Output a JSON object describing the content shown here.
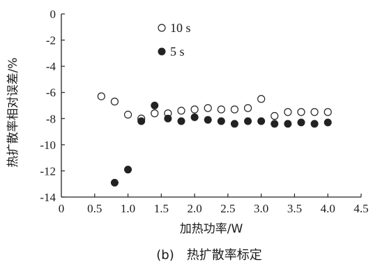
{
  "chart_data": {
    "type": "scatter",
    "xlabel": "加热功率/W",
    "ylabel": "热扩散率相对误差/%",
    "xlim": [
      0,
      4.5
    ],
    "ylim": [
      -14,
      0
    ],
    "xticks": [
      "0",
      "0.5",
      "1.0",
      "1.5",
      "2.0",
      "2.5",
      "3.0",
      "3.5",
      "4.0",
      "4.5"
    ],
    "yticks": [
      "0",
      "-2",
      "-4",
      "-6",
      "-8",
      "-10",
      "-12",
      "-14"
    ],
    "legend_position": "top-center",
    "series": [
      {
        "name": "10 s",
        "marker": "open-circle",
        "color": "#222222",
        "x": [
          0.6,
          0.8,
          1.0,
          1.2,
          1.4,
          1.6,
          1.8,
          2.0,
          2.2,
          2.4,
          2.6,
          2.8,
          3.0,
          3.2,
          3.4,
          3.6,
          3.8,
          4.0
        ],
        "y": [
          -6.3,
          -6.7,
          -7.7,
          -8.0,
          -7.6,
          -7.6,
          -7.4,
          -7.3,
          -7.2,
          -7.3,
          -7.3,
          -7.2,
          -6.5,
          -7.8,
          -7.5,
          -7.5,
          -7.5,
          -7.5
        ]
      },
      {
        "name": "5 s",
        "marker": "filled-circle",
        "color": "#222222",
        "x": [
          0.8,
          1.0,
          1.2,
          1.4,
          1.6,
          1.8,
          2.0,
          2.2,
          2.4,
          2.6,
          2.8,
          3.0,
          3.2,
          3.4,
          3.6,
          3.8,
          4.0
        ],
        "y": [
          -12.9,
          -11.9,
          -8.2,
          -7.0,
          -8.0,
          -8.2,
          -7.9,
          -8.1,
          -8.2,
          -8.4,
          -8.2,
          -8.2,
          -8.4,
          -8.4,
          -8.3,
          -8.4,
          -8.3
        ]
      }
    ]
  },
  "caption": "(b)　热扩散率标定"
}
